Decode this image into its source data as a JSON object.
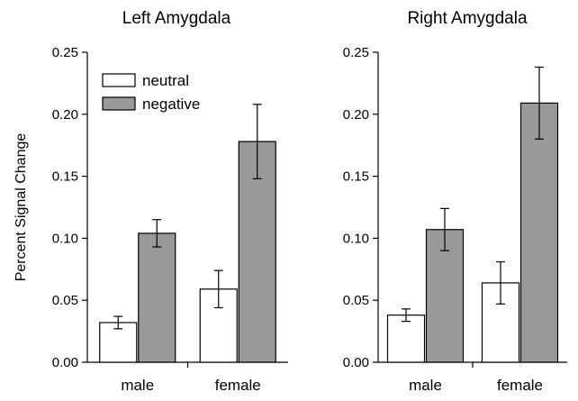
{
  "chart_data": [
    {
      "type": "bar",
      "title": "Left Amygdala",
      "ylabel": "Percent Signal Change",
      "xlabel": "",
      "categories": [
        "male",
        "female"
      ],
      "ylim": [
        0,
        0.25
      ],
      "yticks": [
        "0.00",
        "0.05",
        "0.10",
        "0.15",
        "0.20",
        "0.25"
      ],
      "series": [
        {
          "name": "neutral",
          "color": "#ffffff",
          "values": [
            0.032,
            0.059
          ],
          "errors": [
            0.005,
            0.015
          ]
        },
        {
          "name": "negative",
          "color": "#999999",
          "values": [
            0.104,
            0.178
          ],
          "errors": [
            0.011,
            0.03
          ]
        }
      ],
      "legend": "top-left"
    },
    {
      "type": "bar",
      "title": "Right Amygdala",
      "ylabel": "",
      "xlabel": "",
      "categories": [
        "male",
        "female"
      ],
      "ylim": [
        0,
        0.25
      ],
      "yticks": [
        "0.00",
        "0.05",
        "0.10",
        "0.15",
        "0.20",
        "0.25"
      ],
      "series": [
        {
          "name": "neutral",
          "color": "#ffffff",
          "values": [
            0.038,
            0.064
          ],
          "errors": [
            0.005,
            0.017
          ]
        },
        {
          "name": "negative",
          "color": "#999999",
          "values": [
            0.107,
            0.209
          ],
          "errors": [
            0.017,
            0.029
          ]
        }
      ]
    }
  ]
}
